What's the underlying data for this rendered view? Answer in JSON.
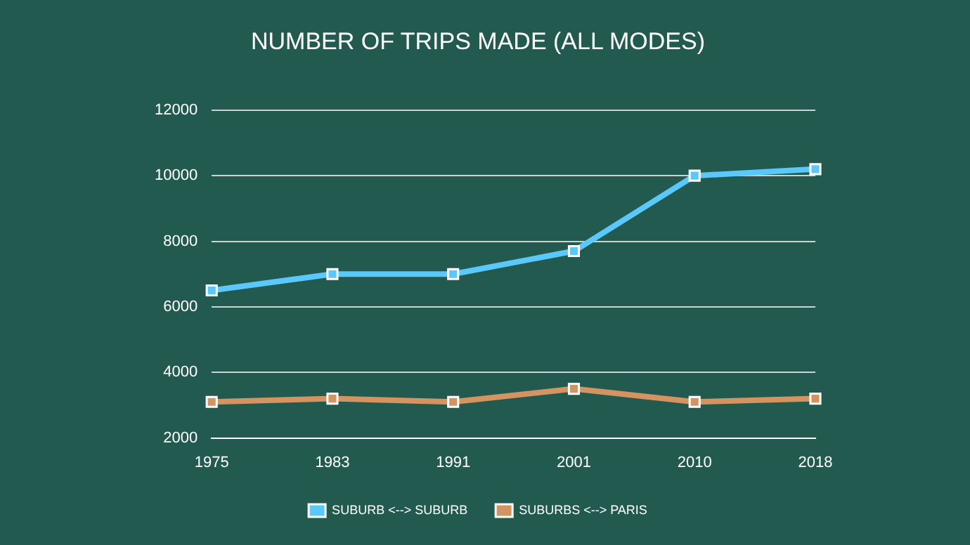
{
  "chart_data": {
    "type": "line",
    "title": "NUMBER OF TRIPS MADE (ALL MODES)",
    "categories": [
      "1975",
      "1983",
      "1991",
      "2001",
      "2010",
      "2018"
    ],
    "series": [
      {
        "name": "SUBURB <--> SUBURB",
        "color": "#5ac8fa",
        "values": [
          6500,
          7000,
          7000,
          7700,
          10000,
          10200
        ]
      },
      {
        "name": "SUBURBS <--> PARIS",
        "color": "#d39462",
        "values": [
          3100,
          3200,
          3100,
          3500,
          3100,
          3200
        ]
      }
    ],
    "ylim": [
      2000,
      12000
    ],
    "yticks": [
      2000,
      4000,
      6000,
      8000,
      10000,
      12000
    ],
    "grid": "y",
    "legend": "bottom",
    "marker": "square",
    "line_style": "solid"
  }
}
